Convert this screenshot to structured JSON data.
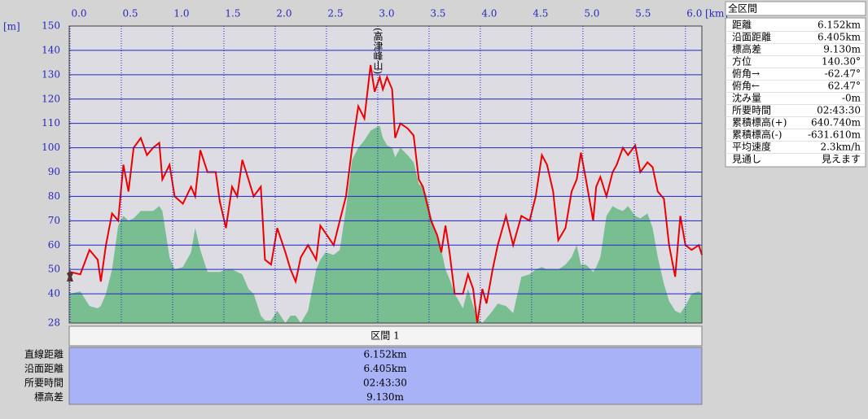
{
  "chart_data": {
    "type": "line",
    "x_unit": "[km]",
    "y_unit": "[m]",
    "annotation": "(高津峰山)",
    "xlim": [
      0,
      6.16
    ],
    "ylim": [
      28,
      150
    ],
    "xticks": [
      {
        "value": 0,
        "label": "0.0"
      },
      0.5,
      {
        "value": 1,
        "label": "1.0"
      },
      1.5,
      {
        "value": 2,
        "label": "2.0"
      },
      2.5,
      {
        "value": 3,
        "label": "3.0"
      },
      3.5,
      {
        "value": 4,
        "label": "4.0"
      },
      4.5,
      {
        "value": 5,
        "label": "5.0"
      },
      5.5,
      {
        "value": 6,
        "label": "6.0"
      }
    ],
    "yticks": [
      28,
      40,
      50,
      60,
      70,
      80,
      90,
      100,
      110,
      120,
      130,
      140,
      150
    ],
    "grid": true,
    "x": [
      0.0,
      0.1,
      0.19,
      0.27,
      0.3,
      0.35,
      0.41,
      0.47,
      0.52,
      0.57,
      0.62,
      0.69,
      0.75,
      0.81,
      0.87,
      0.9,
      0.97,
      1.02,
      1.1,
      1.18,
      1.22,
      1.27,
      1.34,
      1.42,
      1.46,
      1.52,
      1.58,
      1.63,
      1.68,
      1.74,
      1.79,
      1.86,
      1.9,
      1.96,
      2.02,
      2.1,
      2.15,
      2.2,
      2.25,
      2.32,
      2.4,
      2.44,
      2.49,
      2.57,
      2.63,
      2.69,
      2.75,
      2.81,
      2.87,
      2.93,
      2.97,
      3.02,
      3.05,
      3.09,
      3.14,
      3.17,
      3.22,
      3.29,
      3.35,
      3.4,
      3.44,
      3.48,
      3.52,
      3.58,
      3.62,
      3.66,
      3.7,
      3.75,
      3.83,
      3.88,
      3.93,
      3.97,
      4.02,
      4.06,
      4.12,
      4.17,
      4.25,
      4.32,
      4.4,
      4.48,
      4.54,
      4.6,
      4.65,
      4.71,
      4.76,
      4.83,
      4.89,
      4.94,
      4.98,
      5.03,
      5.1,
      5.13,
      5.17,
      5.23,
      5.29,
      5.33,
      5.39,
      5.44,
      5.51,
      5.56,
      5.63,
      5.68,
      5.73,
      5.79,
      5.84,
      5.9,
      5.95,
      6.0,
      6.06,
      6.13,
      6.16
    ],
    "series": [
      {
        "color": "#6dba87",
        "fill": true,
        "values": [
          40,
          41,
          35,
          34,
          35,
          40,
          50,
          68,
          72,
          70,
          71,
          74,
          74,
          74,
          76,
          74,
          55,
          50,
          51,
          57,
          67,
          58,
          49,
          49,
          49,
          50,
          50,
          49,
          48,
          42,
          40,
          31,
          29,
          29,
          33,
          28,
          31,
          31,
          28,
          33,
          50,
          54,
          57,
          56,
          58,
          75,
          95,
          100,
          103,
          107,
          108,
          109,
          104,
          101,
          100,
          96,
          100,
          97,
          94,
          85,
          84,
          80,
          72,
          64,
          58,
          50,
          46,
          40,
          34,
          42,
          35,
          30,
          28,
          30,
          33,
          36,
          35,
          32,
          47,
          48,
          50,
          51,
          50,
          50,
          50,
          52,
          55,
          60,
          52,
          52,
          49,
          51,
          55,
          72,
          76,
          75,
          74,
          76,
          72,
          71,
          73,
          67,
          55,
          44,
          37,
          33,
          32,
          35,
          40,
          41,
          40
        ]
      },
      {
        "color": "#ee0000",
        "fill": false,
        "values": [
          49,
          48,
          58,
          54,
          45,
          60,
          73,
          70,
          93,
          82,
          100,
          104,
          97,
          100,
          102,
          87,
          93,
          80,
          77,
          84,
          80,
          99,
          90,
          90,
          78,
          67,
          84,
          80,
          95,
          87,
          80,
          84,
          54,
          52,
          67,
          57,
          50,
          45,
          55,
          60,
          54,
          68,
          65,
          60,
          70,
          80,
          100,
          117,
          112,
          134,
          123,
          129,
          124,
          129,
          124,
          104,
          110,
          108,
          105,
          87,
          84,
          77,
          70,
          64,
          57,
          68,
          57,
          40,
          40,
          48,
          42,
          28,
          42,
          36,
          50,
          60,
          72,
          60,
          72,
          70,
          80,
          97,
          93,
          82,
          62,
          67,
          82,
          87,
          98,
          87,
          70,
          84,
          88,
          80,
          90,
          93,
          100,
          97,
          101,
          90,
          94,
          92,
          82,
          79,
          60,
          47,
          72,
          60,
          58,
          60,
          56
        ]
      }
    ]
  },
  "section": {
    "title": "区間 1",
    "rows": [
      [
        "直線距離",
        "6.152km"
      ],
      [
        "沿面距離",
        "6.405km"
      ],
      [
        "所要時間",
        "02:43:30"
      ],
      [
        "標高差",
        "9.130m"
      ]
    ]
  },
  "panel": {
    "title": "全区間",
    "rows": [
      [
        "距離",
        "6.152km"
      ],
      [
        "沿面距離",
        "6.405km"
      ],
      [
        "標高差",
        "9.130m"
      ],
      [
        "方位",
        "140.30°"
      ],
      [
        "俯角→",
        "-62.47°"
      ],
      [
        "俯角←",
        "62.47°"
      ],
      [
        "沈み量",
        "-0m"
      ],
      [
        "所要時間",
        "02:43:30"
      ],
      [
        "累積標高(+)",
        "640.740m"
      ],
      [
        "累積標高(-)",
        "-631.610m"
      ],
      [
        "平均速度",
        "2.3km/h"
      ],
      [
        "見通し",
        "見えます"
      ]
    ]
  }
}
